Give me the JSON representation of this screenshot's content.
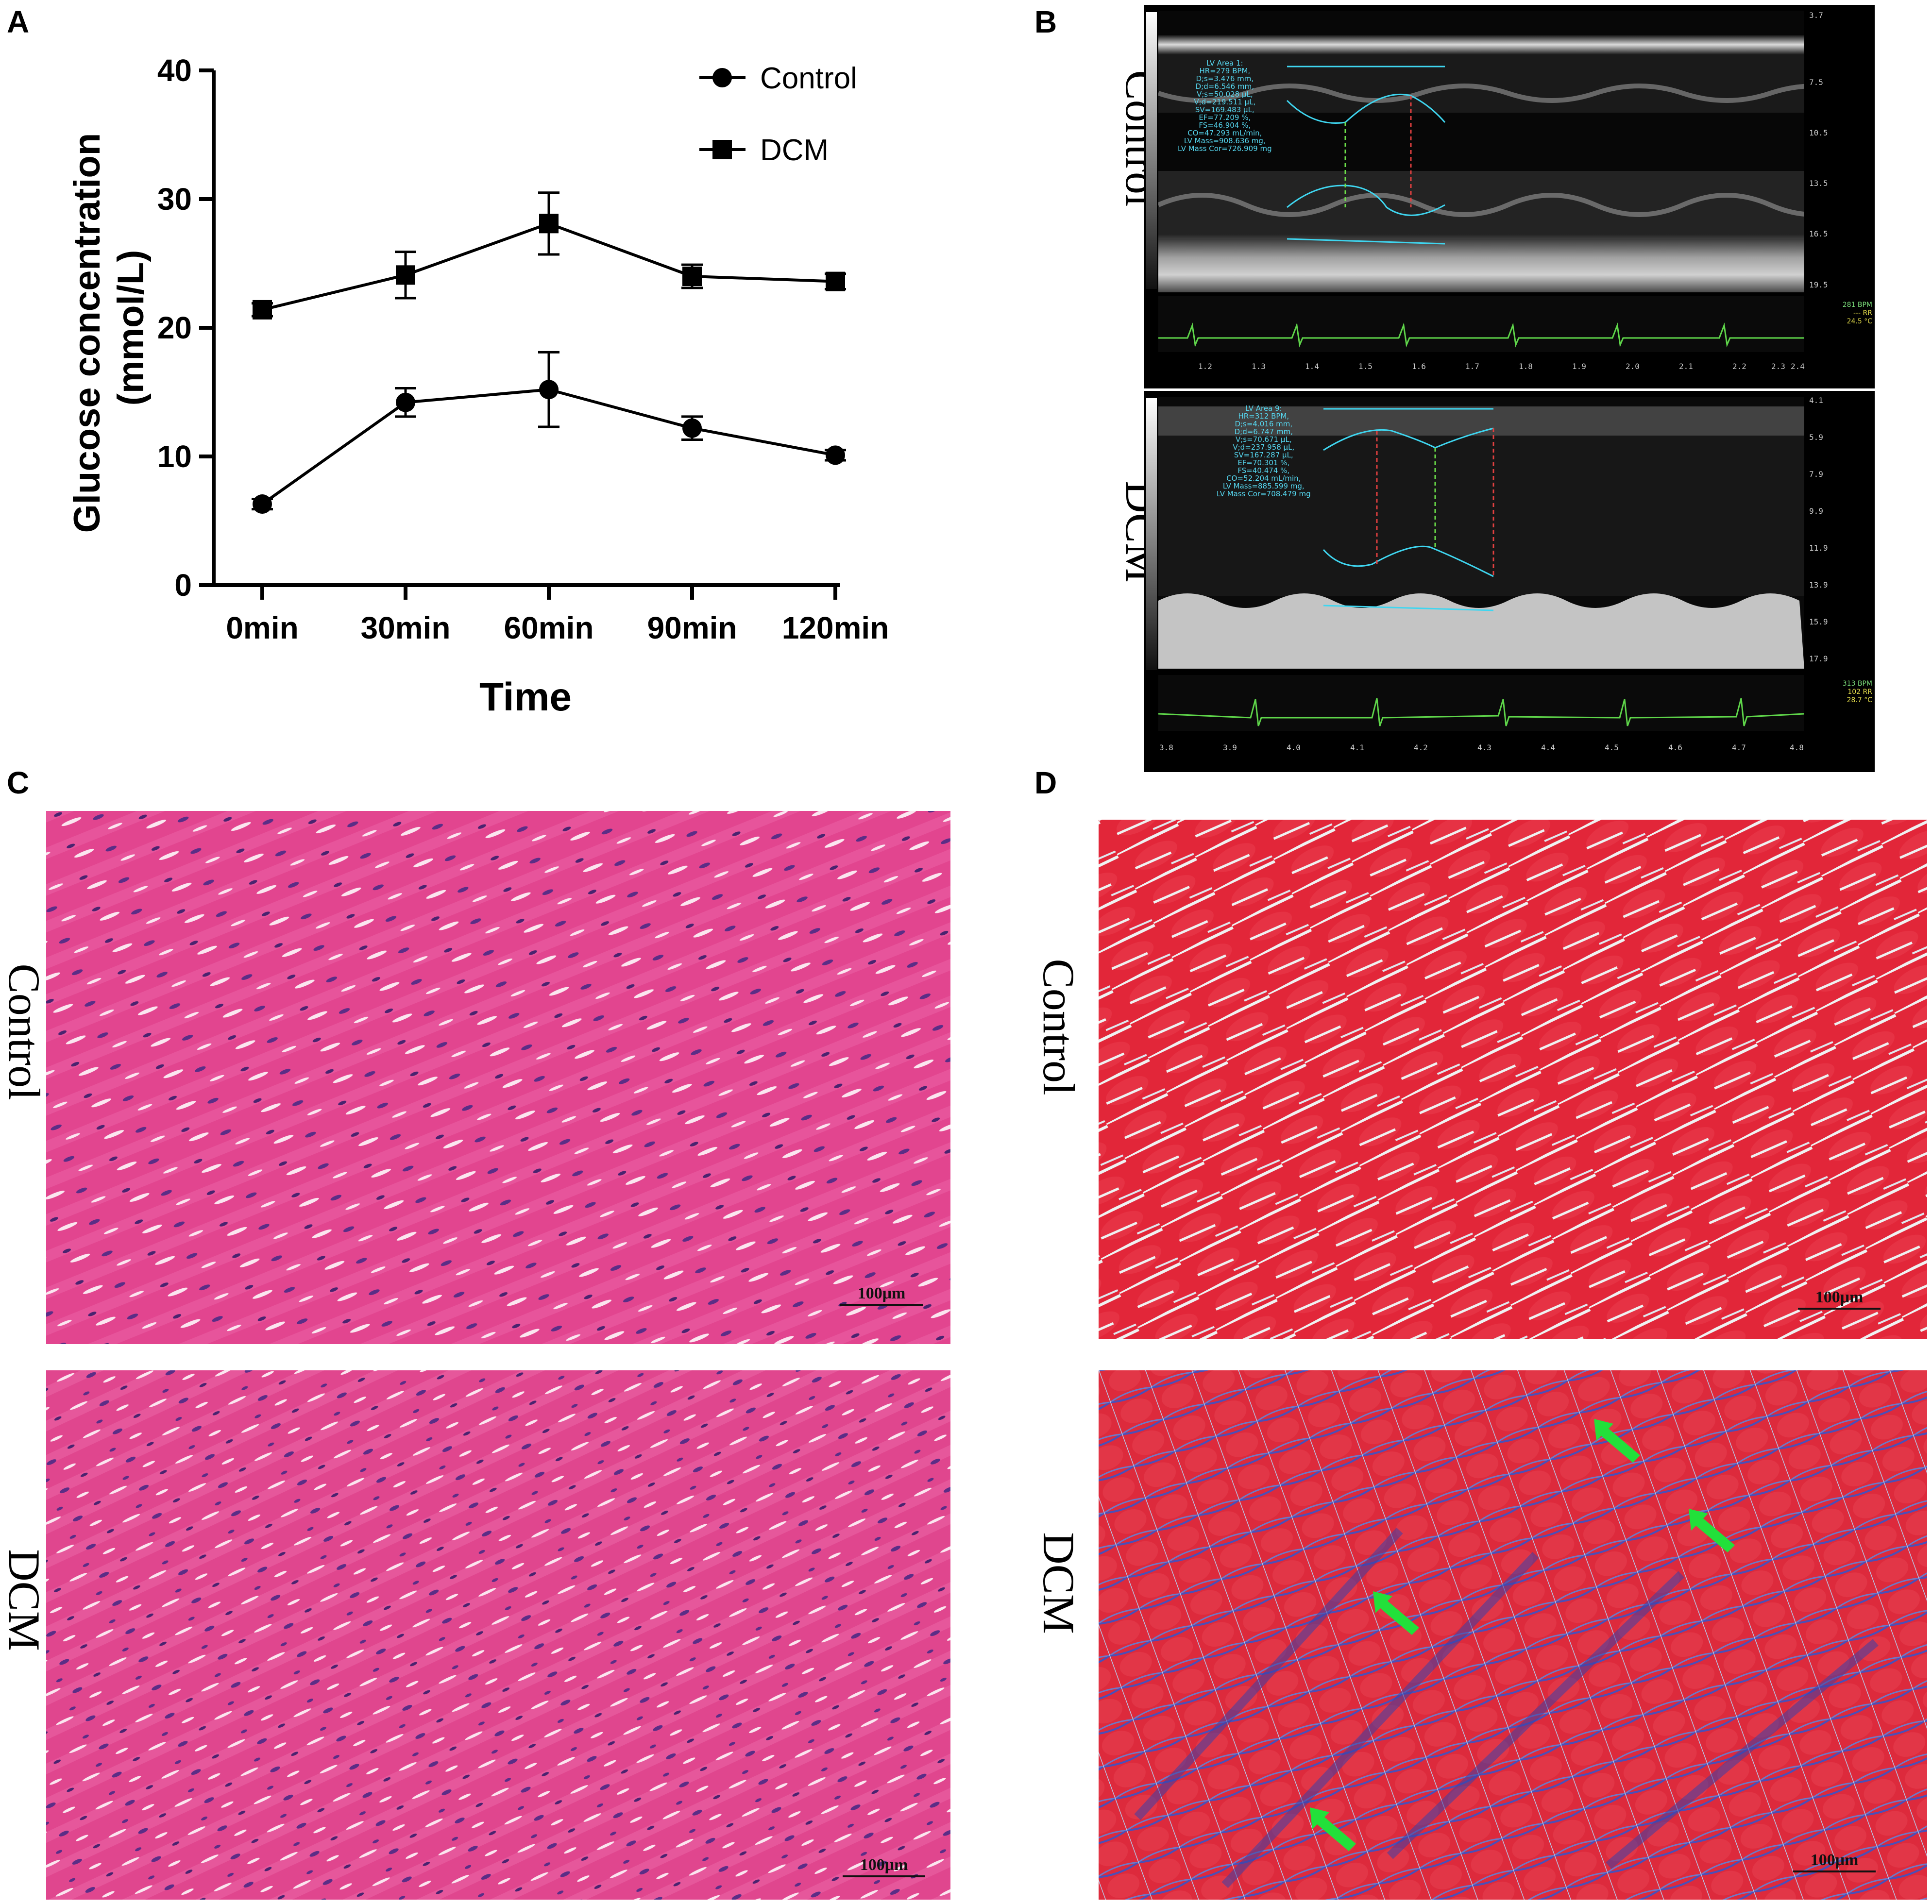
{
  "panels": {
    "a": "A",
    "b": "B",
    "c": "C",
    "d": "D"
  },
  "chart_data": {
    "type": "line",
    "title": "",
    "xlabel": "Time",
    "ylabel": "Glucose concentration (mmol/L)",
    "ylabel_line1": "Glucose concentration",
    "ylabel_line2": "(mmol/L)",
    "categories": [
      "0min",
      "30min",
      "60min",
      "90min",
      "120min"
    ],
    "ylim": [
      0,
      40
    ],
    "yticks": [
      "0",
      "10",
      "20",
      "30",
      "40"
    ],
    "grid": false,
    "legend_position": "top-right",
    "series": [
      {
        "name": "Control",
        "marker": "circle",
        "values": [
          6.3,
          14.2,
          15.2,
          12.2,
          10.1
        ],
        "errors": [
          0.4,
          1.1,
          2.9,
          0.9,
          0.4
        ]
      },
      {
        "name": "DCM",
        "marker": "square",
        "values": [
          21.4,
          24.1,
          28.1,
          24.0,
          23.6
        ],
        "errors": [
          0.5,
          1.8,
          2.4,
          0.9,
          0.6
        ]
      }
    ]
  },
  "echo": {
    "control": {
      "group": "Control",
      "readout": "LV Area 1:\nHR=279 BPM,\nD;s=3.476 mm,\nD;d=6.546 mm,\nV;s=50.028 µL,\nV;d=219.511 µL,\nSV=169.483 µL,\nEF=77.209 %,\nFS=46.904 %,\nCO=47.293 mL/min,\nLV Mass=908.636 mg,\nLV Mass Cor=726.909 mg",
      "depth_ticks": [
        "3.7",
        "7.5",
        "10.5",
        "13.5",
        "16.5",
        "19.5"
      ],
      "time_ticks": [
        "1.2",
        "1.3",
        "1.4",
        "1.5",
        "1.6",
        "1.7",
        "1.8",
        "1.9",
        "2.0",
        "2.1",
        "2.2",
        "2.3",
        "2.4"
      ],
      "vitals": [
        "281 BPM",
        "--- RR",
        "24.5 °C"
      ]
    },
    "dcm": {
      "group": "DCM",
      "readout": "LV Area 9:\nHR=312 BPM,\nD;s=4.016 mm,\nD;d=6.747 mm,\nV;s=70.671 µL,\nV;d=237.958 µL,\nSV=167.287 µL,\nEF=70.301 %,\nFS=40.474 %,\nCO=52.204 mL/min,\nLV Mass=885.599 mg,\nLV Mass Cor=708.479 mg",
      "depth_ticks": [
        "4.1",
        "5.9",
        "7.9",
        "9.9",
        "11.9",
        "13.9",
        "15.9",
        "17.9"
      ],
      "time_ticks": [
        "3.8",
        "3.9",
        "4.0",
        "4.1",
        "4.2",
        "4.3",
        "4.4",
        "4.5",
        "4.6",
        "4.7",
        "4.8"
      ],
      "vitals": [
        "313 BPM",
        "102 RR",
        "28.7 °C"
      ]
    }
  },
  "histology": {
    "control_label": "Control",
    "dcm_label": "DCM",
    "scale": "100μm"
  },
  "colors": {
    "he_stain": "#e2458f",
    "masson_red": "#e22639",
    "masson_blue": "#4a4fb8",
    "arrow": "#22e03a",
    "echo_overlay": "#3fd6f0"
  }
}
